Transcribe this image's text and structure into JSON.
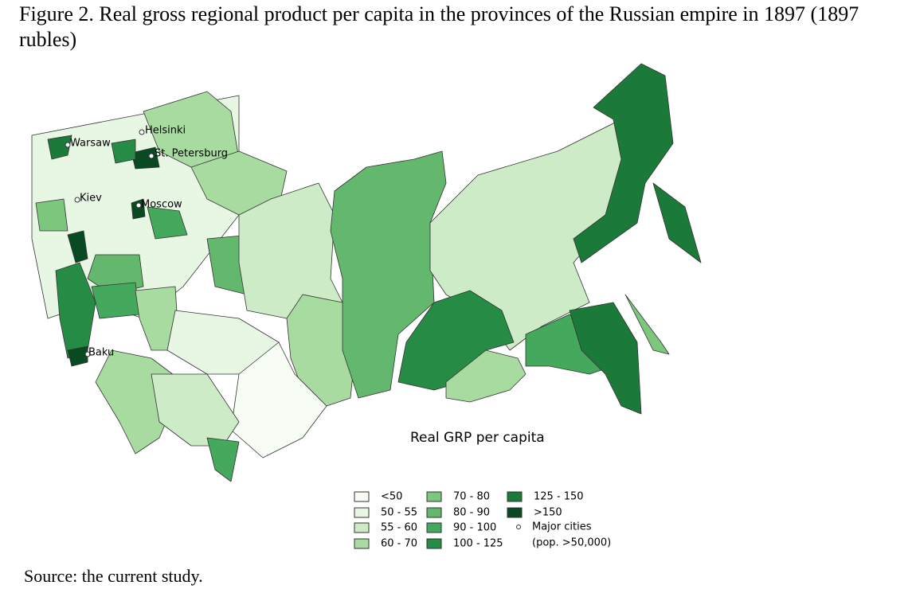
{
  "title": "Figure 2. Real gross regional product per capita in the provinces of the Russian empire in 1897 (1897 rubles)",
  "legend": {
    "title": "Real GRP per capita",
    "items": [
      {
        "label": "<50",
        "color": "#f7fcf5"
      },
      {
        "label": "50 - 55",
        "color": "#e8f6e4"
      },
      {
        "label": "55 - 60",
        "color": "#cdebc6"
      },
      {
        "label": "60 - 70",
        "color": "#a8dba0"
      },
      {
        "label": "70 - 80",
        "color": "#7cc67e"
      },
      {
        "label": "80 - 90",
        "color": "#63b86e"
      },
      {
        "label": "90 - 100",
        "color": "#44a95c"
      },
      {
        "label": "100 - 125",
        "color": "#268c45"
      },
      {
        "label": "125 - 150",
        "color": "#1b7a3a"
      },
      {
        "label": ">150",
        "color": "#0a4a22"
      }
    ],
    "cities_label": [
      "Major cities",
      "(pop. >50,000)"
    ]
  },
  "cities": [
    "Helsinki",
    "Warsaw",
    "St. Petersburg",
    "Kiev",
    "Moscow",
    "Baku"
  ],
  "source": "Source: the current study."
}
